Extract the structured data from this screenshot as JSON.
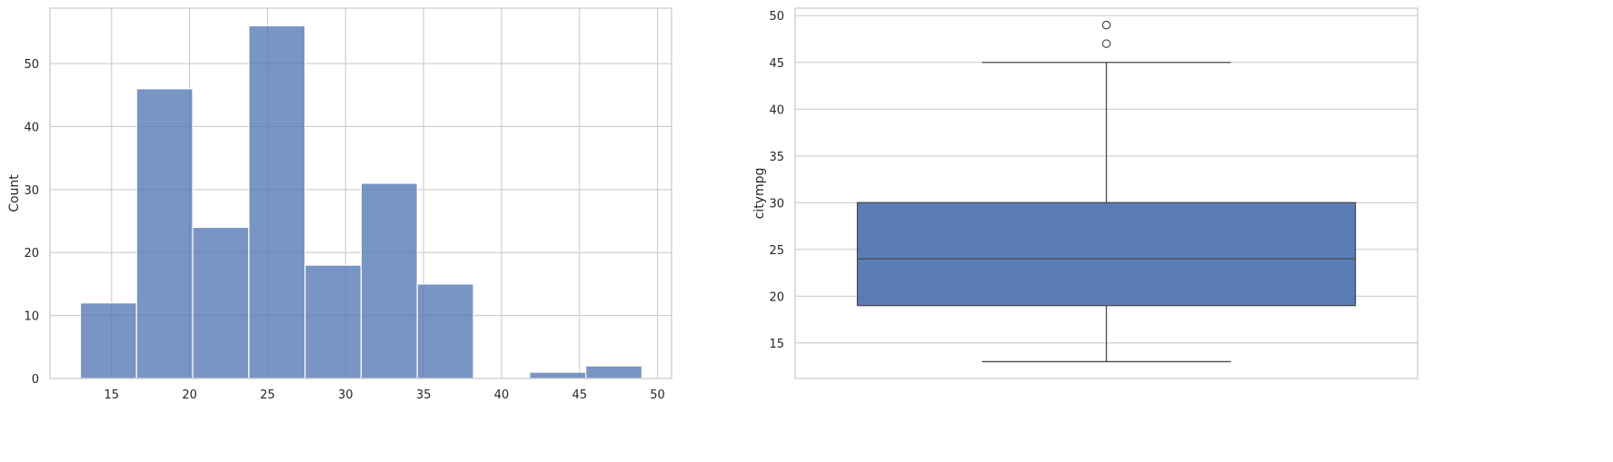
{
  "chart_data": [
    {
      "type": "bar",
      "subtype": "histogram",
      "ylabel": "Count",
      "xlabel": "",
      "bar_color": "#4c72b0",
      "bar_opacity": 0.75,
      "bins": [
        {
          "x0": 13.0,
          "x1": 16.6,
          "count": 12
        },
        {
          "x0": 16.6,
          "x1": 20.2,
          "count": 46
        },
        {
          "x0": 20.2,
          "x1": 23.8,
          "count": 24
        },
        {
          "x0": 23.8,
          "x1": 27.4,
          "count": 56
        },
        {
          "x0": 27.4,
          "x1": 31.0,
          "count": 18
        },
        {
          "x0": 31.0,
          "x1": 34.6,
          "count": 31
        },
        {
          "x0": 34.6,
          "x1": 38.2,
          "count": 15
        },
        {
          "x0": 38.2,
          "x1": 41.8,
          "count": 0
        },
        {
          "x0": 41.8,
          "x1": 45.4,
          "count": 1
        },
        {
          "x0": 45.4,
          "x1": 49.0,
          "count": 2
        }
      ],
      "xlim": [
        11.05,
        50.9
      ],
      "ylim": [
        0,
        58.8
      ],
      "xticks": [
        15,
        20,
        25,
        30,
        35,
        40,
        45,
        50
      ],
      "yticks": [
        0,
        10,
        20,
        30,
        40,
        50
      ],
      "grid": true
    },
    {
      "type": "box",
      "ylabel": "citympg",
      "xlabel": "",
      "box_color": "#4c72b0",
      "line_color": "#4a4a4a",
      "stats": {
        "whisker_low": 13,
        "q1": 19,
        "median": 24,
        "q3": 30,
        "whisker_high": 45
      },
      "outliers": [
        47,
        49
      ],
      "ylim": [
        11.2,
        50.8
      ],
      "yticks": [
        15,
        20,
        25,
        30,
        35,
        40,
        45,
        50
      ],
      "grid": true
    }
  ]
}
